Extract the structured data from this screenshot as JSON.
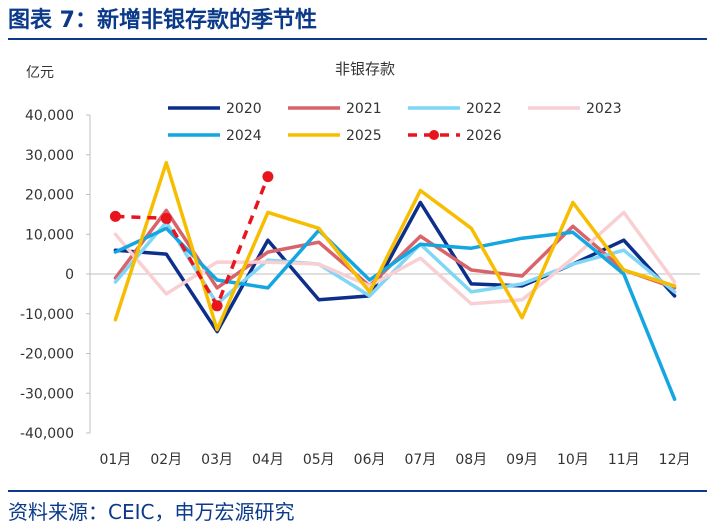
{
  "figure": {
    "title": "图表 7：新增非银存款的季节性",
    "source": "资料来源：CEIC，申万宏源研究"
  },
  "chart_data": {
    "type": "line",
    "title": "非银存款",
    "ylabel": "亿元",
    "xlabel": "",
    "ylim": [
      -40000,
      40000
    ],
    "y_ticks": [
      -40000,
      -30000,
      -20000,
      -10000,
      0,
      10000,
      20000,
      30000,
      40000
    ],
    "y_tick_labels": [
      "-40,000",
      "-30,000",
      "-20,000",
      "-10,000",
      "0",
      "10,000",
      "20,000",
      "30,000",
      "40,000"
    ],
    "categories": [
      "01月",
      "02月",
      "03月",
      "04月",
      "05月",
      "06月",
      "07月",
      "08月",
      "09月",
      "10月",
      "11月",
      "12月"
    ],
    "grid": false,
    "legend_position": "top",
    "series": [
      {
        "name": "2020",
        "color": "#0d2f8c",
        "dash": false,
        "markers": false,
        "values": [
          6000,
          5000,
          -14500,
          8500,
          -6500,
          -5500,
          18000,
          -2500,
          -3000,
          2500,
          8500,
          -5500
        ]
      },
      {
        "name": "2021",
        "color": "#d9636a",
        "dash": false,
        "markers": false,
        "values": [
          -1000,
          16000,
          -3500,
          5500,
          8000,
          -3000,
          9500,
          1000,
          -500,
          12000,
          1000,
          -3500
        ]
      },
      {
        "name": "2022",
        "color": "#7fd6f5",
        "dash": false,
        "markers": false,
        "values": [
          -2000,
          13000,
          -7500,
          3500,
          2500,
          -5500,
          7500,
          -4500,
          -2500,
          2500,
          6000,
          -4500
        ]
      },
      {
        "name": "2023",
        "color": "#f8d0d3",
        "dash": false,
        "markers": false,
        "values": [
          10000,
          -5000,
          3000,
          3000,
          2500,
          -3000,
          4000,
          -7500,
          -6500,
          4000,
          15500,
          -2000
        ]
      },
      {
        "name": "2024",
        "color": "#14a6e0",
        "dash": false,
        "markers": false,
        "values": [
          5500,
          11500,
          -1500,
          -3500,
          11000,
          -1500,
          7500,
          6500,
          9000,
          10500,
          0,
          -31500
        ]
      },
      {
        "name": "2025",
        "color": "#f7bd00",
        "dash": false,
        "markers": false,
        "values": [
          -11500,
          28000,
          -14000,
          15500,
          11500,
          -4500,
          21000,
          11500,
          -11000,
          18000,
          1000,
          -3000
        ]
      },
      {
        "name": "2026",
        "color": "#e8141e",
        "dash": true,
        "markers": true,
        "values": [
          14500,
          14000,
          -8000,
          24500,
          null,
          null,
          null,
          null,
          null,
          null,
          null,
          null
        ]
      }
    ]
  }
}
